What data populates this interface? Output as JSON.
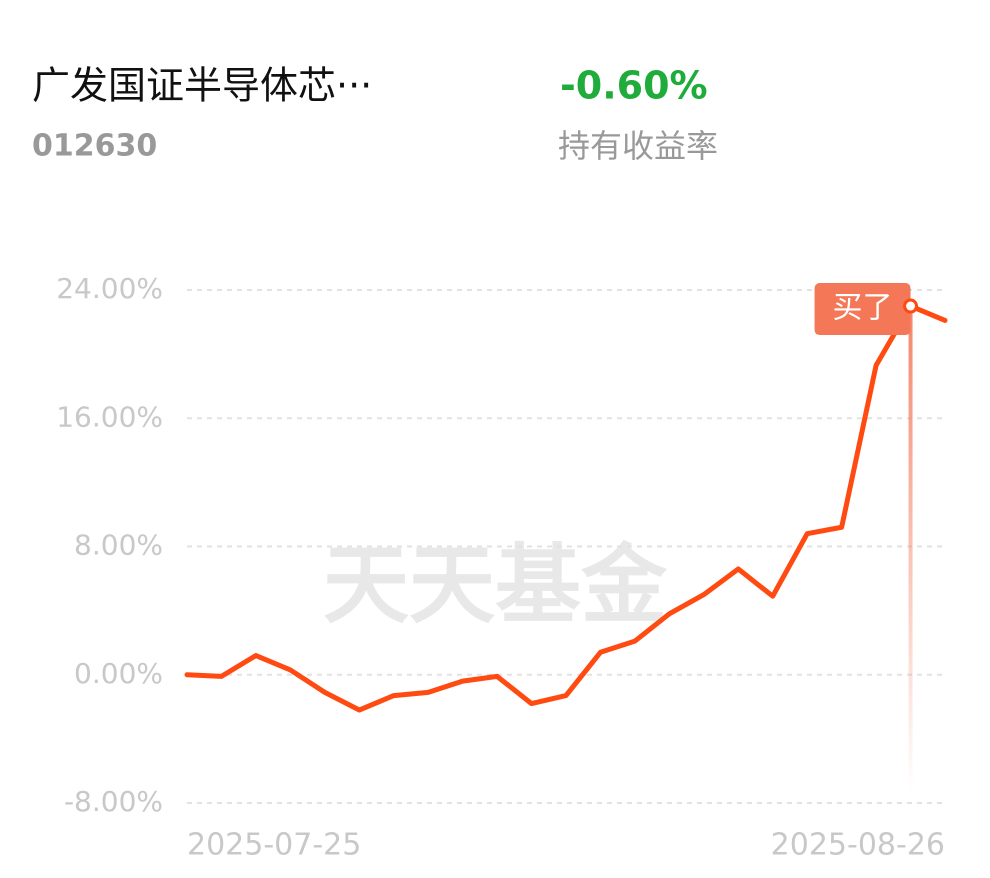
{
  "header": {
    "title": "广发国证半导体芯···",
    "code": "012630",
    "return": "-0.60%",
    "return_label": "持有收益率"
  },
  "chart_data": {
    "type": "line",
    "watermark": "天天基金",
    "annotation": "买了",
    "categories": [
      "2025-07-25",
      null,
      null,
      null,
      null,
      null,
      null,
      null,
      null,
      null,
      null,
      null,
      null,
      null,
      null,
      null,
      null,
      null,
      null,
      null,
      null,
      null,
      "2025-08-26"
    ],
    "series": [
      {
        "color": "#ff4a12",
        "values": [
          0.0,
          -0.1,
          1.2,
          0.3,
          -1.1,
          -2.2,
          -1.3,
          -1.1,
          -0.4,
          -0.1,
          -1.8,
          -1.3,
          1.4,
          2.1,
          3.8,
          5.0,
          6.6,
          4.9,
          8.8,
          9.2,
          19.3,
          23.0,
          22.1
        ]
      }
    ],
    "ylim": [
      -8,
      24
    ],
    "yticks": [
      {
        "value": -8,
        "label": "-8.00%"
      },
      {
        "value": 0,
        "label": "0.00%"
      },
      {
        "value": 8,
        "label": "8.00%"
      },
      {
        "value": 16,
        "label": "16.00%"
      },
      {
        "value": 24,
        "label": "24.00%"
      }
    ],
    "grid": true
  }
}
